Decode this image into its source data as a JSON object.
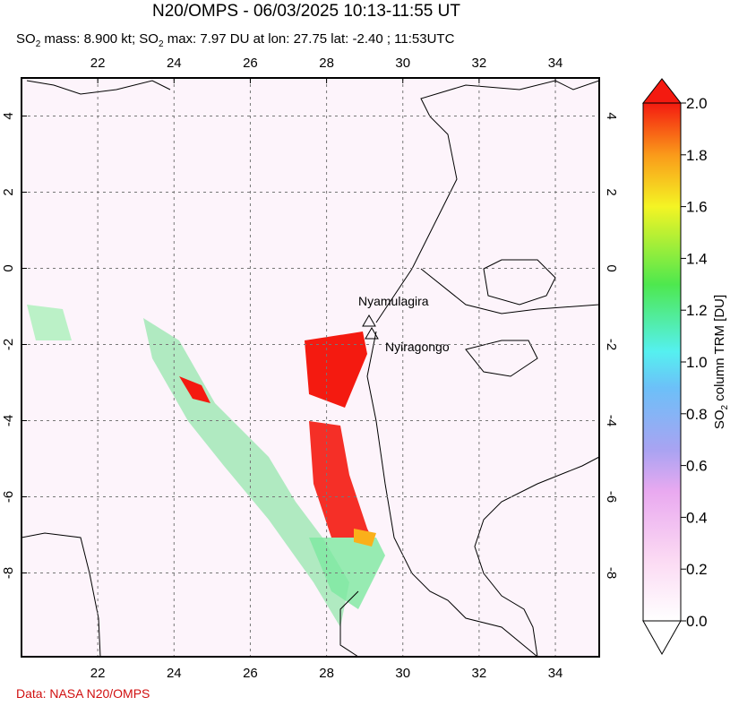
{
  "title": "N20/OMPS - 06/03/2025 10:13-11:55 UT",
  "subtitle": [
    "SO",
    "2",
    " mass: 8.900 kt; SO",
    "2",
    " max: 7.97 DU at lon: 27.75 lat: -2.40 ; 11:53UTC"
  ],
  "map": {
    "xlim": [
      20,
      35.15
    ],
    "ylim": [
      -10.2,
      5
    ],
    "xticks": [
      22,
      24,
      26,
      28,
      30,
      32,
      34
    ],
    "yticks": [
      4,
      2,
      0,
      -2,
      -4,
      -6,
      -8
    ],
    "volcanoes": [
      "Nyamulagira",
      "Nyiragongo"
    ]
  },
  "colorbar": {
    "label": [
      "SO",
      "2",
      " column TRM [DU]"
    ],
    "lim": [
      0,
      2
    ],
    "ticks": [
      {
        "value": 0,
        "label": "0.0"
      },
      {
        "value": 0.2,
        "label": "0.2"
      },
      {
        "value": 0.4,
        "label": "0.4"
      },
      {
        "value": 0.6,
        "label": "0.6"
      },
      {
        "value": 0.8,
        "label": "0.8"
      },
      {
        "value": 1,
        "label": "1.0"
      },
      {
        "value": 1.2,
        "label": "1.2"
      },
      {
        "value": 1.4,
        "label": "1.4"
      },
      {
        "value": 1.6,
        "label": "1.6"
      },
      {
        "value": 1.8,
        "label": "1.8"
      },
      {
        "value": 2,
        "label": "2.0"
      }
    ]
  },
  "credit": "Data: NASA N20/OMPS"
}
